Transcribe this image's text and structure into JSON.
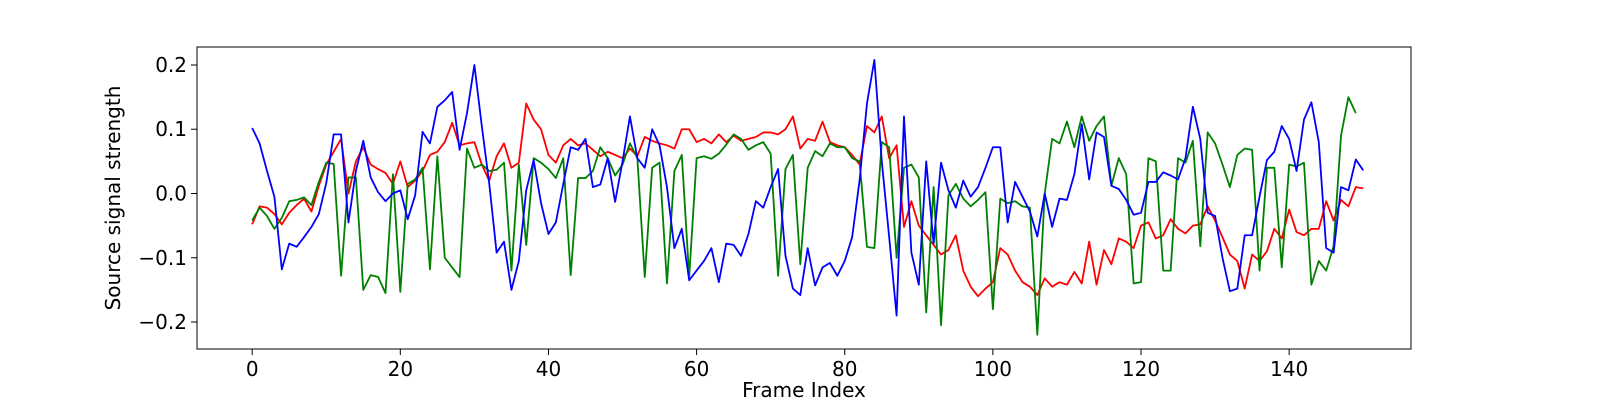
{
  "chart_data": {
    "type": "line",
    "title": "",
    "xlabel": "Frame Index",
    "ylabel": "Source signal strength",
    "xlim": [
      -7.45,
      156.45
    ],
    "ylim": [
      -0.242,
      0.228
    ],
    "xticks": [
      0,
      20,
      40,
      60,
      80,
      100,
      120,
      140
    ],
    "yticks": [
      -0.2,
      -0.1,
      0.0,
      0.1,
      0.2
    ],
    "ytick_labels": [
      "−0.2",
      "−0.1",
      "0.0",
      "0.1",
      "0.2"
    ],
    "xtick_labels": [
      "0",
      "20",
      "40",
      "60",
      "80",
      "100",
      "120",
      "140"
    ],
    "grid": false,
    "legend": false,
    "series": [
      {
        "color": "#ff0000",
        "values": [
          -0.048,
          -0.02,
          -0.022,
          -0.032,
          -0.048,
          -0.03,
          -0.018,
          -0.008,
          -0.028,
          0.012,
          0.045,
          0.065,
          0.085,
          0.0,
          0.05,
          0.072,
          0.045,
          0.038,
          0.032,
          0.015,
          0.05,
          0.01,
          0.02,
          0.035,
          0.06,
          0.065,
          0.08,
          0.11,
          0.075,
          0.078,
          0.08,
          0.045,
          0.02,
          0.058,
          0.078,
          0.04,
          0.048,
          0.14,
          0.115,
          0.1,
          0.06,
          0.048,
          0.075,
          0.085,
          0.075,
          0.078,
          0.068,
          0.058,
          0.065,
          0.06,
          0.055,
          0.07,
          0.058,
          0.088,
          0.082,
          0.078,
          0.075,
          0.07,
          0.1,
          0.1,
          0.08,
          0.085,
          0.078,
          0.092,
          0.08,
          0.09,
          0.082,
          0.085,
          0.088,
          0.095,
          0.095,
          0.092,
          0.1,
          0.12,
          0.07,
          0.085,
          0.082,
          0.112,
          0.08,
          0.075,
          0.072,
          0.06,
          0.045,
          0.105,
          0.095,
          0.12,
          0.055,
          0.075,
          -0.052,
          -0.012,
          -0.05,
          -0.065,
          -0.08,
          -0.095,
          -0.088,
          -0.065,
          -0.12,
          -0.145,
          -0.16,
          -0.148,
          -0.138,
          -0.085,
          -0.095,
          -0.12,
          -0.138,
          -0.145,
          -0.158,
          -0.132,
          -0.145,
          -0.138,
          -0.142,
          -0.122,
          -0.14,
          -0.075,
          -0.142,
          -0.088,
          -0.11,
          -0.07,
          -0.075,
          -0.085,
          -0.05,
          -0.045,
          -0.07,
          -0.065,
          -0.04,
          -0.055,
          -0.062,
          -0.05,
          -0.048,
          -0.02,
          -0.042,
          -0.068,
          -0.095,
          -0.105,
          -0.148,
          -0.095,
          -0.105,
          -0.09,
          -0.055,
          -0.07,
          -0.025,
          -0.06,
          -0.065,
          -0.055,
          -0.055,
          -0.012,
          -0.042,
          -0.01,
          -0.02,
          0.01,
          0.008
        ]
      },
      {
        "color": "#008000",
        "values": [
          -0.042,
          -0.022,
          -0.035,
          -0.055,
          -0.038,
          -0.012,
          -0.01,
          -0.006,
          -0.018,
          0.018,
          0.048,
          0.046,
          -0.128,
          0.025,
          0.025,
          -0.15,
          -0.127,
          -0.13,
          -0.155,
          0.03,
          -0.153,
          0.015,
          0.022,
          0.04,
          -0.118,
          0.058,
          -0.1,
          -0.115,
          -0.13,
          0.07,
          0.04,
          0.045,
          0.035,
          0.037,
          0.048,
          -0.12,
          0.045,
          -0.08,
          0.055,
          0.048,
          0.038,
          0.024,
          0.055,
          -0.127,
          0.024,
          0.024,
          0.035,
          0.072,
          0.055,
          0.028,
          0.045,
          0.078,
          0.055,
          -0.13,
          0.04,
          0.048,
          -0.14,
          0.035,
          0.06,
          -0.13,
          0.055,
          0.058,
          0.054,
          0.062,
          0.076,
          0.092,
          0.085,
          0.068,
          0.075,
          0.08,
          0.062,
          -0.128,
          0.038,
          0.06,
          -0.11,
          0.04,
          0.066,
          0.058,
          0.078,
          0.072,
          0.072,
          0.055,
          0.05,
          -0.083,
          -0.085,
          0.08,
          0.072,
          -0.1,
          0.04,
          0.045,
          0.025,
          -0.185,
          0.01,
          -0.205,
          -0.003,
          0.015,
          -0.008,
          -0.02,
          -0.01,
          0.002,
          -0.18,
          -0.008,
          -0.015,
          -0.012,
          -0.02,
          -0.022,
          -0.22,
          0.0,
          0.085,
          0.078,
          0.112,
          0.072,
          0.12,
          0.082,
          0.105,
          0.12,
          0.012,
          0.055,
          0.03,
          -0.14,
          -0.138,
          0.055,
          0.05,
          -0.12,
          -0.12,
          0.055,
          0.048,
          0.082,
          -0.082,
          0.095,
          0.078,
          0.045,
          0.01,
          0.06,
          0.07,
          0.068,
          -0.12,
          0.04,
          0.04,
          -0.115,
          0.045,
          0.042,
          0.048,
          -0.142,
          -0.105,
          -0.12,
          -0.082,
          0.09,
          0.15,
          0.125
        ]
      },
      {
        "color": "#0000ff",
        "values": [
          0.102,
          0.078,
          0.035,
          -0.005,
          -0.118,
          -0.078,
          -0.083,
          -0.068,
          -0.052,
          -0.032,
          0.016,
          0.092,
          0.092,
          -0.045,
          0.035,
          0.082,
          0.025,
          0.002,
          -0.012,
          0.0,
          0.005,
          -0.04,
          -0.003,
          0.096,
          0.078,
          0.135,
          0.145,
          0.158,
          0.068,
          0.125,
          0.2,
          0.105,
          0.016,
          -0.092,
          -0.075,
          -0.15,
          -0.105,
          0.005,
          0.052,
          -0.015,
          -0.063,
          -0.045,
          0.015,
          0.072,
          0.068,
          0.085,
          0.01,
          0.014,
          0.055,
          -0.013,
          0.05,
          0.12,
          0.055,
          0.04,
          0.1,
          0.075,
          0.01,
          -0.085,
          -0.055,
          -0.135,
          -0.12,
          -0.105,
          -0.085,
          -0.138,
          -0.078,
          -0.08,
          -0.097,
          -0.063,
          -0.012,
          -0.022,
          0.01,
          0.038,
          -0.097,
          -0.148,
          -0.158,
          -0.085,
          -0.143,
          -0.115,
          -0.108,
          -0.128,
          -0.105,
          -0.068,
          0.02,
          0.14,
          0.208,
          0.05,
          -0.068,
          -0.19,
          0.12,
          -0.092,
          -0.142,
          0.05,
          -0.078,
          0.048,
          0.005,
          -0.022,
          0.02,
          -0.005,
          0.01,
          0.04,
          0.072,
          0.072,
          -0.045,
          0.018,
          -0.005,
          -0.028,
          -0.067,
          0.0,
          -0.052,
          -0.008,
          -0.01,
          0.03,
          0.108,
          0.022,
          0.095,
          0.088,
          0.012,
          0.007,
          -0.01,
          -0.033,
          -0.03,
          0.018,
          0.018,
          0.033,
          0.028,
          0.022,
          0.055,
          0.135,
          0.085,
          -0.03,
          -0.035,
          -0.1,
          -0.152,
          -0.148,
          -0.065,
          -0.065,
          -0.005,
          0.052,
          0.065,
          0.105,
          0.085,
          0.035,
          0.115,
          0.142,
          0.08,
          -0.085,
          -0.092,
          0.01,
          0.005,
          0.053,
          0.036
        ]
      }
    ]
  }
}
